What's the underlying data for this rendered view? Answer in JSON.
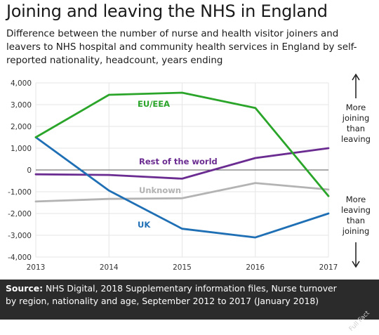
{
  "header": {
    "title": "Joining and leaving the NHS in England",
    "subtitle": "Difference between the number of nurse and health visitor joiners and leavers to NHS hospital and community health services in England by self-reported nationality, headcount, years ending"
  },
  "chart_data": {
    "type": "line",
    "x": [
      "2013",
      "2014",
      "2015",
      "2016",
      "2017"
    ],
    "yticks": [
      "4,000",
      "3,000",
      "2,000",
      "1,000",
      "0",
      "-1,000",
      "-2,000",
      "-3,000",
      "-4,000"
    ],
    "ylim": [
      -4000,
      4000
    ],
    "series": [
      {
        "name": "EU/EEA",
        "color": "#2aa52a",
        "values": [
          1500,
          3450,
          3550,
          2850,
          -1200
        ]
      },
      {
        "name": "Rest of the world",
        "color": "#6b2c91",
        "values": [
          -200,
          -230,
          -400,
          550,
          1000
        ]
      },
      {
        "name": "Unknown",
        "color": "#b3b3b3",
        "values": [
          -1450,
          -1330,
          -1300,
          -600,
          -900
        ]
      },
      {
        "name": "UK",
        "color": "#1f6fb5",
        "values": [
          1500,
          -950,
          -2700,
          -3100,
          -2000
        ]
      }
    ],
    "annotations": {
      "up": [
        "More",
        "joining",
        "than",
        "leaving"
      ],
      "down": [
        "More",
        "leaving",
        "than",
        "joining"
      ]
    }
  },
  "footer": {
    "source_label": "Source:",
    "source_text": " NHS Digital, 2018 Supplementary information files, Nurse turnover by region, nationality and age, September 2012 to 2017 (January 2018)",
    "logo": "Full Fact"
  }
}
